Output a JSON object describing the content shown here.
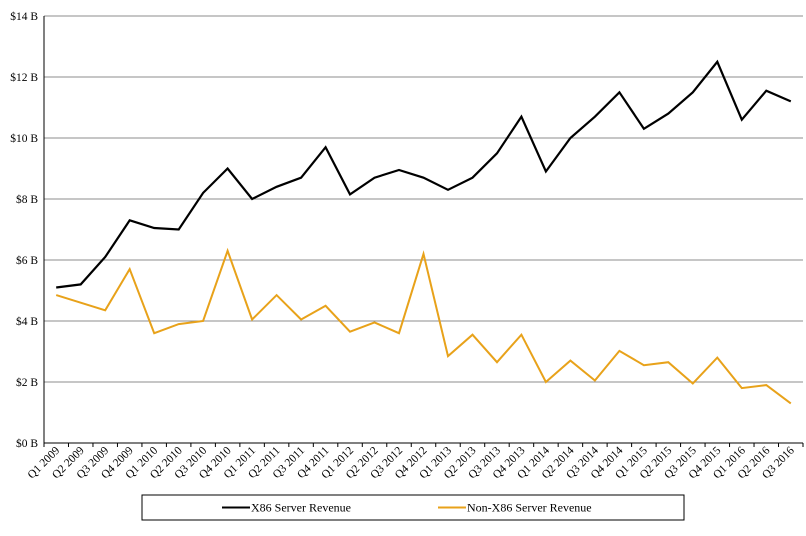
{
  "chart_data": {
    "type": "line",
    "title": "",
    "xlabel": "",
    "ylabel": "",
    "ylim": [
      0,
      14
    ],
    "yticks": [
      {
        "value": 0,
        "label": "$0 B"
      },
      {
        "value": 2,
        "label": "$2 B"
      },
      {
        "value": 4,
        "label": "$4 B"
      },
      {
        "value": 6,
        "label": "$6 B"
      },
      {
        "value": 8,
        "label": "$8 B"
      },
      {
        "value": 10,
        "label": "$10 B"
      },
      {
        "value": 12,
        "label": "$12 B"
      },
      {
        "value": 14,
        "label": "$14 B"
      }
    ],
    "grid": true,
    "legend_position": "bottom",
    "categories": [
      "Q1 2009",
      "Q2 2009",
      "Q3 2009",
      "Q4 2009",
      "Q1 2010",
      "Q2 2010",
      "Q3 2010",
      "Q4 2010",
      "Q1 2011",
      "Q2 2011",
      "Q3 2011",
      "Q4 2011",
      "Q1 2012",
      "Q2 2012",
      "Q3 2012",
      "Q4 2012",
      "Q1 2013",
      "Q2 2013",
      "Q3 2013",
      "Q4 2013",
      "Q1 2014",
      "Q2 2014",
      "Q3 2014",
      "Q4 2014",
      "Q1 2015",
      "Q2 2015",
      "Q3 2015",
      "Q4 2015",
      "Q1 2016",
      "Q2 2016",
      "Q3 2016"
    ],
    "series": [
      {
        "name": "X86 Server Revenue",
        "color": "#000000",
        "values": [
          5.1,
          5.2,
          6.1,
          7.3,
          7.05,
          7.0,
          8.2,
          9.0,
          8.0,
          8.4,
          8.7,
          9.7,
          8.15,
          8.7,
          8.95,
          8.7,
          8.3,
          8.7,
          9.5,
          10.7,
          8.9,
          10.0,
          10.7,
          11.5,
          10.3,
          10.8,
          11.5,
          12.5,
          10.6,
          11.55,
          11.2
        ]
      },
      {
        "name": "Non-X86 Server Revenue",
        "color": "#E8A21A",
        "values": [
          4.85,
          4.6,
          4.35,
          5.7,
          3.6,
          3.9,
          4.0,
          6.3,
          4.05,
          4.85,
          4.05,
          4.5,
          3.65,
          3.95,
          3.6,
          6.2,
          2.85,
          3.55,
          2.65,
          3.55,
          2.0,
          2.7,
          2.05,
          3.02,
          2.55,
          2.65,
          1.95,
          2.8,
          1.8,
          1.9,
          1.3
        ]
      }
    ]
  }
}
